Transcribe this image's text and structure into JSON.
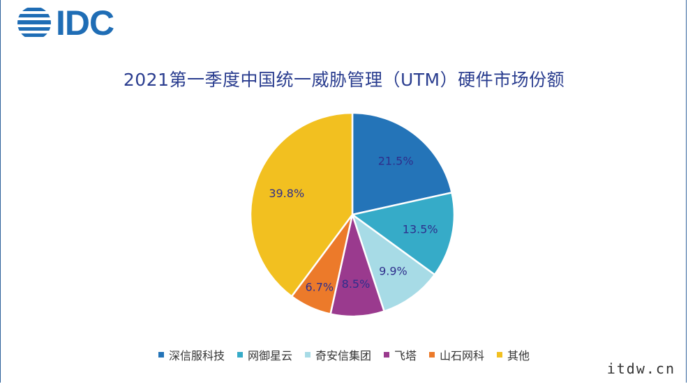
{
  "brand": {
    "logo_text": "IDC",
    "logo_color": "#1f6db5"
  },
  "watermark": "itdw.cn",
  "chart_data": {
    "type": "pie",
    "title": "2021第一季度中国统一威胁管理（UTM）硬件市场份额",
    "legend_position": "bottom",
    "slices": [
      {
        "name": "深信服科技",
        "value": 21.5,
        "label": "21.5%",
        "color": "#2474b8"
      },
      {
        "name": "网御星云",
        "value": 13.5,
        "label": "13.5%",
        "color": "#36abc8"
      },
      {
        "name": "奇安信集团",
        "value": 9.9,
        "label": "9.9%",
        "color": "#a7dbe6"
      },
      {
        "name": "飞塔",
        "value": 8.5,
        "label": "8.5%",
        "color": "#9a3a8e"
      },
      {
        "name": "山石网科",
        "value": 6.7,
        "label": "6.7%",
        "color": "#ec7a2a"
      },
      {
        "name": "其他",
        "value": 39.8,
        "label": "39.8%",
        "color": "#f2c020"
      }
    ]
  }
}
